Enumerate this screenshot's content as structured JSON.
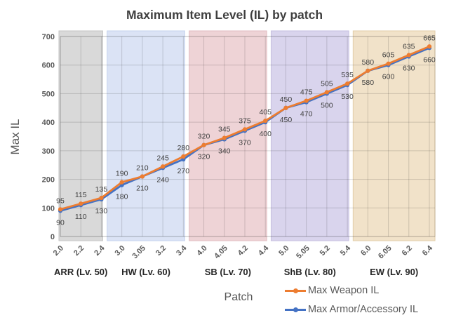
{
  "chart_data": {
    "type": "line",
    "title": "Maximum Item Level (IL) by patch",
    "xlabel": "Patch",
    "ylabel": "Max IL",
    "ylim": [
      0,
      700
    ],
    "ytick_step": 100,
    "grid": true,
    "legend_position": "bottom-right",
    "categories": [
      "2.0",
      "2.2",
      "2.4",
      "3.0",
      "3.05",
      "3.2",
      "3.4",
      "4.0",
      "4.05",
      "4.2",
      "4.4",
      "5.0",
      "5.05",
      "5.2",
      "5.4",
      "6.0",
      "6.05",
      "6.2",
      "6.4"
    ],
    "series": [
      {
        "name": "Max Weapon IL",
        "color": "#ED7D31",
        "label_position": "above",
        "values": [
          95,
          115,
          135,
          190,
          210,
          245,
          280,
          320,
          345,
          375,
          405,
          450,
          475,
          505,
          535,
          580,
          605,
          635,
          665
        ]
      },
      {
        "name": "Max Armor/Accessory IL",
        "color": "#4472C4",
        "label_position": "below",
        "values": [
          90,
          110,
          130,
          180,
          210,
          240,
          270,
          320,
          340,
          370,
          400,
          450,
          470,
          500,
          530,
          580,
          600,
          630,
          660
        ]
      }
    ],
    "expansion_bands": [
      {
        "label": "ARR (Lv. 50)",
        "first_index": 0,
        "last_index": 2,
        "fill": "#D9D9D9",
        "stroke": "#C6C6C6"
      },
      {
        "label": "HW (Lv. 60)",
        "first_index": 3,
        "last_index": 6,
        "fill": "#DBE3F5",
        "stroke": "#C5D3EE"
      },
      {
        "label": "SB (Lv. 70)",
        "first_index": 7,
        "last_index": 10,
        "fill": "#EED3D6",
        "stroke": "#E2BEC3"
      },
      {
        "label": "ShB (Lv. 80)",
        "first_index": 11,
        "last_index": 14,
        "fill": "#D9D4ED",
        "stroke": "#C6BFE0"
      },
      {
        "label": "EW (Lv. 90)",
        "first_index": 15,
        "last_index": 18,
        "fill": "#F1E2C9",
        "stroke": "#E2CEA9"
      }
    ],
    "style": {
      "title_color": "#3F3F3F",
      "axis_title_color": "#595959",
      "tick_label_color": "#595959",
      "data_label_color": "#404040",
      "band_label_color": "#262626",
      "grid_color": "rgba(0,0,0,0.15)"
    }
  }
}
